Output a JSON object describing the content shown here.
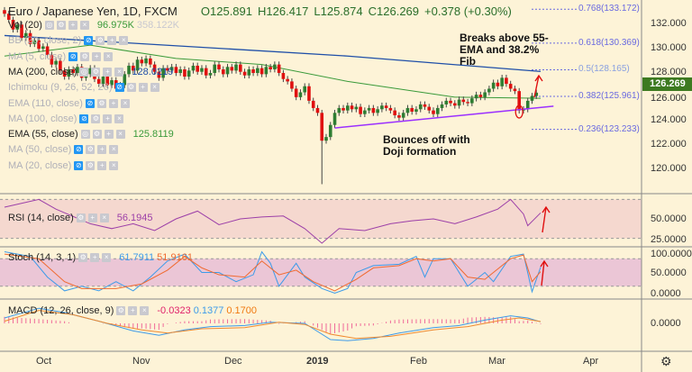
{
  "header": {
    "symbol": "Euro / Japanese Yen, 1D, FXCM",
    "open": "O125.891",
    "high": "H126.417",
    "low": "L125.874",
    "close": "C126.269",
    "change": "+0.378 (+0.30%)"
  },
  "legend": [
    {
      "label": "Vol (20)",
      "v1": "96.975K",
      "v2": "358.122K",
      "dark": true
    },
    {
      "label": "BB (20, close, 2)",
      "hidden": true
    },
    {
      "label": "MA (5, close)",
      "hidden": true
    },
    {
      "label": "MA (200, close)",
      "v1": "128.0219",
      "dark": true
    },
    {
      "label": "Ichimoku (9, 26, 52, 26)",
      "hidden": true
    },
    {
      "label": "EMA (110, close)",
      "hidden": true
    },
    {
      "label": "MA (100, close)",
      "hidden": true
    },
    {
      "label": "EMA (55, close)",
      "v1": "125.8119",
      "dark": true
    },
    {
      "label": "MA (50, close)",
      "hidden": true
    },
    {
      "label": "MA (20, close)",
      "hidden": true
    }
  ],
  "panes": {
    "rsi": {
      "label": "RSI (14, close)",
      "value": "56.1945"
    },
    "stoch": {
      "label": "Stoch (14, 3, 1)",
      "k": "61.7911",
      "d": "51.9161"
    },
    "macd": {
      "label": "MACD (12, 26, close, 9)",
      "hist": "-0.0323",
      "macd": "0.1377",
      "signal": "0.1700"
    }
  },
  "annotations": {
    "breaks": "Breaks above 55-EMA and 38.2% Fib",
    "bounce": "Bounces off with Doji formation"
  },
  "current_price": "126.269",
  "colors": {
    "bull": "#2e7d32",
    "bear": "#e01010",
    "ma200": "#1f4fa8",
    "ema55": "#3a9a3a",
    "trend": "#9b30ff",
    "rsi": "#9c3fa8",
    "k": "#3d9be9",
    "d": "#f06a30",
    "fib": "#6a6ae0",
    "price_tag": "#3d7a20"
  },
  "chart_data": {
    "type": "candlestick",
    "title": "Euro / Japanese Yen, 1D, FXCM",
    "price_axis": {
      "ticks": [
        "132.000",
        "130.000",
        "128.000",
        "126.000",
        "124.000",
        "122.000",
        "120.000"
      ],
      "range": [
        117.5,
        134
      ]
    },
    "time_axis": [
      "Oct",
      "Nov",
      "Dec",
      "2019",
      "Feb",
      "Mar",
      "Apr"
    ],
    "closes": [
      132.8,
      132.3,
      131.5,
      131.9,
      130.8,
      131.2,
      130.3,
      130.6,
      129.9,
      130.1,
      129.4,
      128.6,
      128.9,
      128.1,
      127.6,
      128.2,
      127.9,
      128.4,
      127.5,
      127.8,
      128.3,
      127.4,
      127.0,
      127.6,
      126.9,
      127.3,
      126.6,
      126.9,
      127.8,
      128.5,
      128.1,
      129.0,
      128.7,
      129.1,
      128.6,
      128.0,
      127.5,
      128.3,
      128.1,
      128.4,
      127.9,
      128.2,
      127.6,
      128.1,
      128.5,
      128.0,
      128.3,
      127.7,
      127.9,
      128.6,
      128.2,
      127.8,
      128.4,
      128.1,
      128.6,
      128.0,
      127.7,
      128.2,
      127.9,
      128.3,
      127.8,
      128.4,
      128.2,
      128.6,
      127.9,
      127.4,
      127.2,
      126.6,
      125.9,
      126.3,
      126.8,
      125.6,
      125.0,
      124.6,
      122.3,
      122.6,
      123.6,
      124.6,
      125.0,
      124.8,
      125.2,
      124.9,
      125.1,
      124.5,
      124.8,
      125.0,
      124.6,
      124.9,
      125.2,
      125.0,
      124.8,
      124.4,
      124.2,
      124.6,
      125.0,
      124.7,
      124.9,
      125.3,
      125.1,
      124.8,
      124.5,
      125.0,
      125.3,
      125.6,
      125.4,
      125.2,
      125.7,
      125.5,
      125.4,
      125.8,
      126.1,
      125.9,
      126.3,
      126.6,
      127.1,
      126.8,
      127.5,
      127.0,
      126.6,
      126.4,
      124.8,
      124.9,
      125.6,
      126.0,
      126.269
    ],
    "flash_crash": {
      "index": 74,
      "low": 118.7
    },
    "ma200": [
      [
        0,
        131.0
      ],
      [
        80,
        129.3
      ],
      [
        125,
        128.02
      ]
    ],
    "ema55": [
      [
        0,
        129.3
      ],
      [
        20,
        130.2
      ],
      [
        40,
        129.1
      ],
      [
        60,
        128.6
      ],
      [
        80,
        127.2
      ],
      [
        105,
        125.9
      ],
      [
        125,
        125.81
      ]
    ],
    "trendline": [
      [
        77,
        123.35
      ],
      [
        128,
        125.15
      ]
    ],
    "fib_levels": [
      {
        "label": "0.768(133.172)",
        "price": 133.172
      },
      {
        "label": "0.618(130.369)",
        "price": 130.369
      },
      {
        "label": "0.5(128.165)",
        "price": 128.165
      },
      {
        "label": "0.382(125.961)",
        "price": 125.961
      },
      {
        "label": "0.236(123.233)",
        "price": 123.233
      }
    ],
    "rsi": {
      "ticks": [
        "50.0000",
        "25.0000"
      ],
      "bands": [
        70,
        30
      ],
      "series": [
        [
          0,
          62
        ],
        [
          8,
          70
        ],
        [
          12,
          60
        ],
        [
          20,
          45
        ],
        [
          25,
          40
        ],
        [
          30,
          45
        ],
        [
          35,
          38
        ],
        [
          40,
          50
        ],
        [
          45,
          58
        ],
        [
          50,
          44
        ],
        [
          55,
          50
        ],
        [
          60,
          52
        ],
        [
          65,
          53
        ],
        [
          70,
          40
        ],
        [
          74,
          25
        ],
        [
          78,
          40
        ],
        [
          84,
          38
        ],
        [
          90,
          45
        ],
        [
          95,
          48
        ],
        [
          100,
          50
        ],
        [
          105,
          45
        ],
        [
          110,
          52
        ],
        [
          115,
          60
        ],
        [
          118,
          70
        ],
        [
          121,
          55
        ],
        [
          122,
          43
        ],
        [
          125,
          56.2
        ]
      ]
    },
    "stoch": {
      "ticks": [
        "100.0000",
        "50.0000",
        "0.0000"
      ],
      "bands": [
        80,
        20
      ],
      "k": [
        [
          0,
          95
        ],
        [
          6,
          85
        ],
        [
          10,
          40
        ],
        [
          14,
          10
        ],
        [
          18,
          20
        ],
        [
          22,
          10
        ],
        [
          26,
          30
        ],
        [
          30,
          10
        ],
        [
          34,
          40
        ],
        [
          38,
          75
        ],
        [
          42,
          90
        ],
        [
          46,
          50
        ],
        [
          50,
          50
        ],
        [
          54,
          30
        ],
        [
          58,
          45
        ],
        [
          60,
          95
        ],
        [
          62,
          70
        ],
        [
          64,
          20
        ],
        [
          68,
          70
        ],
        [
          70,
          40
        ],
        [
          74,
          15
        ],
        [
          77,
          5
        ],
        [
          80,
          15
        ],
        [
          82,
          50
        ],
        [
          86,
          65
        ],
        [
          92,
          68
        ],
        [
          96,
          85
        ],
        [
          98,
          40
        ],
        [
          100,
          80
        ],
        [
          104,
          80
        ],
        [
          108,
          20
        ],
        [
          112,
          50
        ],
        [
          114,
          30
        ],
        [
          118,
          85
        ],
        [
          121,
          90
        ],
        [
          123,
          8
        ],
        [
          125,
          61.8
        ]
      ],
      "d": [
        [
          0,
          90
        ],
        [
          8,
          80
        ],
        [
          14,
          30
        ],
        [
          18,
          15
        ],
        [
          26,
          15
        ],
        [
          32,
          25
        ],
        [
          38,
          55
        ],
        [
          42,
          85
        ],
        [
          46,
          60
        ],
        [
          50,
          45
        ],
        [
          56,
          40
        ],
        [
          60,
          75
        ],
        [
          64,
          45
        ],
        [
          68,
          55
        ],
        [
          72,
          30
        ],
        [
          77,
          10
        ],
        [
          82,
          35
        ],
        [
          86,
          60
        ],
        [
          92,
          65
        ],
        [
          96,
          80
        ],
        [
          100,
          75
        ],
        [
          104,
          80
        ],
        [
          108,
          40
        ],
        [
          112,
          35
        ],
        [
          118,
          80
        ],
        [
          121,
          88
        ],
        [
          123,
          30
        ],
        [
          125,
          51.9
        ]
      ]
    },
    "macd": {
      "ticks": [
        "0.0000"
      ],
      "macd": [
        [
          0,
          0.5
        ],
        [
          8,
          1.4
        ],
        [
          14,
          1.0
        ],
        [
          22,
          0.2
        ],
        [
          30,
          -0.7
        ],
        [
          36,
          -1.1
        ],
        [
          42,
          -0.6
        ],
        [
          48,
          -0.3
        ],
        [
          56,
          -0.2
        ],
        [
          62,
          0.1
        ],
        [
          70,
          0
        ],
        [
          72,
          -0.5
        ],
        [
          76,
          -1.5
        ],
        [
          80,
          -1.6
        ],
        [
          86,
          -1.4
        ],
        [
          92,
          -0.9
        ],
        [
          100,
          -0.4
        ],
        [
          106,
          -0.2
        ],
        [
          112,
          0.3
        ],
        [
          118,
          0.7
        ],
        [
          122,
          0.5
        ],
        [
          125,
          0.14
        ]
      ],
      "signal": [
        [
          0,
          0.2
        ],
        [
          8,
          1.2
        ],
        [
          16,
          0.8
        ],
        [
          24,
          0
        ],
        [
          32,
          -0.6
        ],
        [
          38,
          -0.9
        ],
        [
          46,
          -0.5
        ],
        [
          56,
          -0.4
        ],
        [
          64,
          0.1
        ],
        [
          70,
          -0.1
        ],
        [
          76,
          -1.0
        ],
        [
          82,
          -1.4
        ],
        [
          90,
          -1.2
        ],
        [
          100,
          -0.6
        ],
        [
          108,
          -0.3
        ],
        [
          116,
          0.3
        ],
        [
          120,
          0.5
        ],
        [
          125,
          0.17
        ]
      ]
    }
  }
}
